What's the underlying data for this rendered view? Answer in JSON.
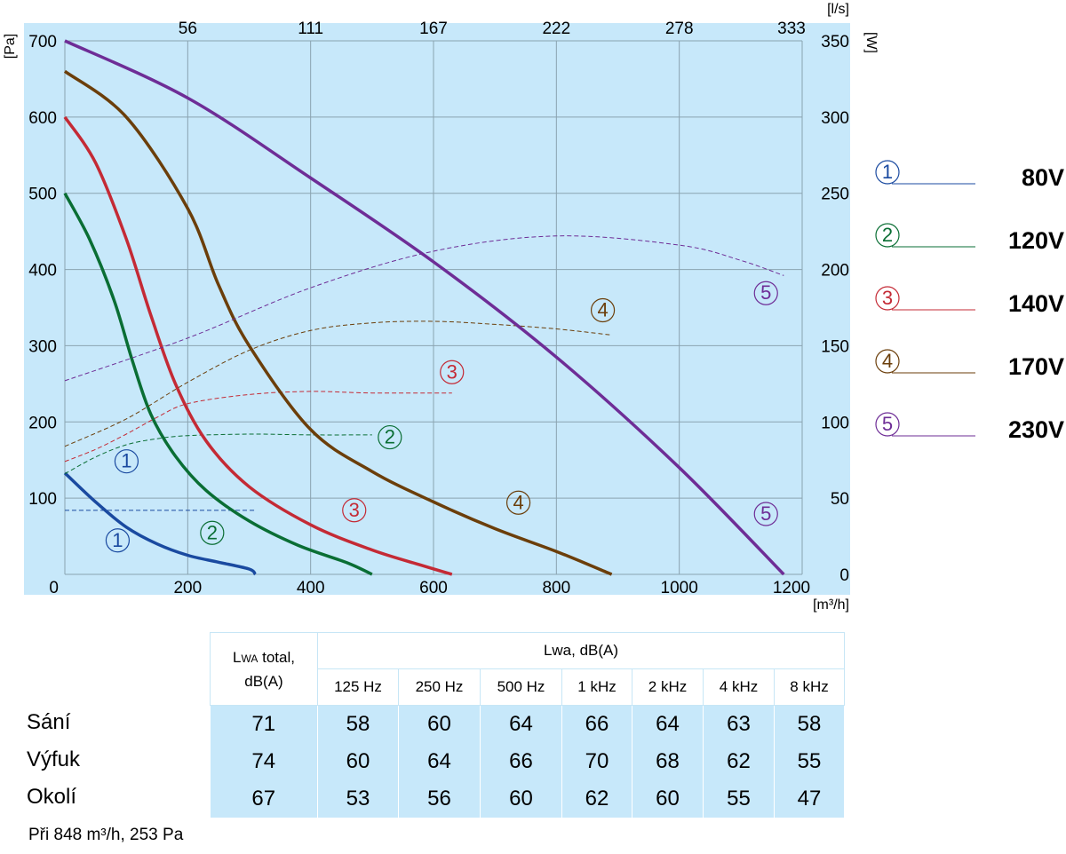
{
  "chart_data": {
    "type": "line",
    "x_unit": "[m³/h]",
    "x_top_unit": "[l/s]",
    "y_left_unit": "[Pa]",
    "y_right_unit": "[W]",
    "xlim": [
      0,
      1200
    ],
    "ylim_left": [
      0,
      700
    ],
    "ylim_right": [
      0,
      350
    ],
    "x_ticks": [
      "0",
      "200",
      "400",
      "600",
      "800",
      "1000",
      "1200"
    ],
    "x_top_ticks": [
      "56",
      "111",
      "167",
      "222",
      "278",
      "333"
    ],
    "y_left_ticks": [
      "100",
      "200",
      "300",
      "400",
      "500",
      "600",
      "700"
    ],
    "y_right_ticks": [
      "0",
      "50",
      "100",
      "150",
      "200",
      "250",
      "300",
      "350"
    ],
    "grid": true,
    "background_color": "#c7e8fa",
    "series": [
      {
        "id": 1,
        "marker": "①",
        "name": "80V",
        "color": "#1a4aa0",
        "pressure": [
          [
            0,
            133
          ],
          [
            50,
            95
          ],
          [
            100,
            62
          ],
          [
            150,
            40
          ],
          [
            200,
            25
          ],
          [
            250,
            16
          ],
          [
            300,
            7
          ],
          [
            310,
            0
          ]
        ],
        "power": [
          [
            0,
            42
          ],
          [
            100,
            42
          ],
          [
            200,
            42
          ],
          [
            310,
            42
          ]
        ]
      },
      {
        "id": 2,
        "marker": "②",
        "name": "120V",
        "color": "#0a6e34",
        "pressure": [
          [
            0,
            500
          ],
          [
            40,
            440
          ],
          [
            80,
            360
          ],
          [
            110,
            280
          ],
          [
            140,
            210
          ],
          [
            180,
            155
          ],
          [
            230,
            110
          ],
          [
            300,
            70
          ],
          [
            380,
            38
          ],
          [
            460,
            15
          ],
          [
            500,
            0
          ]
        ],
        "power": [
          [
            0,
            66
          ],
          [
            50,
            77
          ],
          [
            100,
            85
          ],
          [
            150,
            89
          ],
          [
            200,
            91
          ],
          [
            300,
            92
          ],
          [
            400,
            91.5
          ],
          [
            500,
            91.5
          ]
        ]
      },
      {
        "id": 3,
        "marker": "③",
        "name": "140V",
        "color": "#c42a35",
        "pressure": [
          [
            0,
            600
          ],
          [
            50,
            540
          ],
          [
            100,
            440
          ],
          [
            140,
            340
          ],
          [
            180,
            250
          ],
          [
            230,
            175
          ],
          [
            300,
            115
          ],
          [
            400,
            65
          ],
          [
            500,
            32
          ],
          [
            580,
            12
          ],
          [
            630,
            0
          ]
        ],
        "power": [
          [
            0,
            74
          ],
          [
            50,
            82
          ],
          [
            100,
            92
          ],
          [
            150,
            103
          ],
          [
            200,
            112
          ],
          [
            300,
            118
          ],
          [
            400,
            120
          ],
          [
            500,
            119
          ],
          [
            630,
            119
          ]
        ]
      },
      {
        "id": 4,
        "marker": "④",
        "name": "170V",
        "color": "#6b3e0a",
        "pressure": [
          [
            0,
            660
          ],
          [
            100,
            600
          ],
          [
            200,
            480
          ],
          [
            250,
            380
          ],
          [
            300,
            300
          ],
          [
            400,
            190
          ],
          [
            500,
            135
          ],
          [
            600,
            95
          ],
          [
            700,
            60
          ],
          [
            800,
            30
          ],
          [
            890,
            0
          ]
        ],
        "power": [
          [
            0,
            84
          ],
          [
            100,
            102
          ],
          [
            200,
            126
          ],
          [
            300,
            147
          ],
          [
            400,
            160
          ],
          [
            500,
            165
          ],
          [
            600,
            166
          ],
          [
            700,
            164
          ],
          [
            800,
            161
          ],
          [
            890,
            157
          ]
        ]
      },
      {
        "id": 5,
        "marker": "⑤",
        "name": "230V",
        "color": "#6e2d96",
        "pressure": [
          [
            0,
            700
          ],
          [
            200,
            625
          ],
          [
            400,
            520
          ],
          [
            600,
            410
          ],
          [
            800,
            285
          ],
          [
            1000,
            140
          ],
          [
            1170,
            0
          ]
        ],
        "power": [
          [
            0,
            127
          ],
          [
            200,
            155
          ],
          [
            400,
            188
          ],
          [
            600,
            212
          ],
          [
            800,
            222
          ],
          [
            1000,
            216
          ],
          [
            1100,
            206
          ],
          [
            1170,
            196
          ]
        ]
      }
    ]
  },
  "table": {
    "header_total": [
      "L",
      "WA",
      " total,",
      "dB(A)"
    ],
    "header_lwa": "Lwa, dB(A)",
    "frequencies": [
      "125 Hz",
      "250 Hz",
      "500 Hz",
      "1 kHz",
      "2 kHz",
      "4 kHz",
      "8 kHz"
    ],
    "rows": [
      {
        "label": "Sání",
        "total": "71",
        "values": [
          "58",
          "60",
          "64",
          "66",
          "64",
          "63",
          "58"
        ]
      },
      {
        "label": "Výfuk",
        "total": "74",
        "values": [
          "60",
          "64",
          "66",
          "70",
          "68",
          "62",
          "55"
        ]
      },
      {
        "label": "Okolí",
        "total": "67",
        "values": [
          "53",
          "56",
          "60",
          "62",
          "60",
          "55",
          "47"
        ]
      }
    ]
  },
  "footnote": "Při 848 m³/h, 253 Pa"
}
